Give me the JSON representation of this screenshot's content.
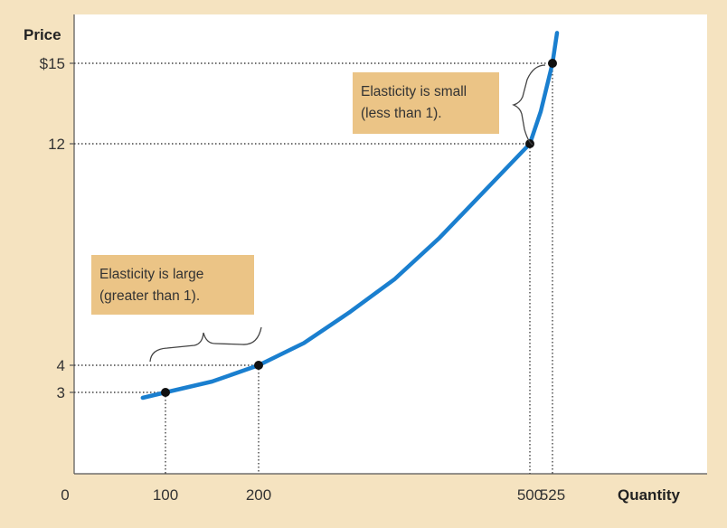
{
  "chart_data": {
    "type": "line",
    "ylabel": "Price",
    "xlabel": "Quantity",
    "y_ticks": [
      {
        "value": 15,
        "label": "$15"
      },
      {
        "value": 12,
        "label": "12"
      },
      {
        "value": 4,
        "label": "4"
      },
      {
        "value": 3,
        "label": "3"
      }
    ],
    "x_ticks": [
      {
        "value": 0,
        "label": "0"
      },
      {
        "value": 100,
        "label": "100"
      },
      {
        "value": 200,
        "label": "200"
      },
      {
        "value": 500,
        "label": "500"
      },
      {
        "value": 525,
        "label": "525"
      }
    ],
    "points": [
      {
        "x": 100,
        "y": 3
      },
      {
        "x": 200,
        "y": 4
      },
      {
        "x": 500,
        "y": 12
      },
      {
        "x": 525,
        "y": 15
      }
    ],
    "series": [
      {
        "x": [
          75,
          100,
          150,
          200,
          250,
          300,
          350,
          400,
          450,
          500,
          512,
          525,
          530
        ],
        "y": [
          2.8,
          3,
          3.4,
          4,
          4.8,
          5.9,
          7.1,
          8.6,
          10.3,
          12,
          13.2,
          15,
          16.2
        ]
      }
    ],
    "annotations": [
      {
        "text": [
          "Elasticity is small",
          "(less than 1)."
        ]
      },
      {
        "text": [
          "Elasticity is large",
          "(greater than 1)."
        ]
      }
    ],
    "colors": {
      "curve": "#1a7fcf",
      "point": "#111111",
      "note_fill": "#ebc486",
      "plot_bg": "#ffffff",
      "frame_bg": "#f5e3c0",
      "guide": "#444444"
    }
  }
}
